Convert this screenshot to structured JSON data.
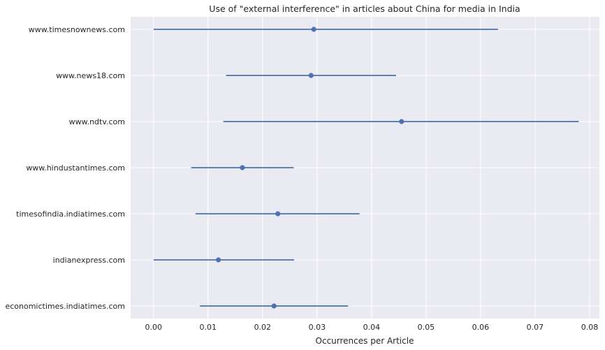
{
  "chart_data": {
    "type": "scatter",
    "title": "Use of \"external interference\" in articles about China for media in India",
    "xlabel": "Occurrences per Article",
    "ylabel": "",
    "xlim": [
      -0.0042,
      0.0818
    ],
    "x_ticks": [
      "0.00",
      "0.01",
      "0.02",
      "0.03",
      "0.04",
      "0.05",
      "0.06",
      "0.07",
      "0.08"
    ],
    "grid": true,
    "color": "#4c72b0",
    "background": "#eaeaf2",
    "categories": [
      "www.timesnownews.com",
      "www.news18.com",
      "www.ndtv.com",
      "www.hindustantimes.com",
      "timesofindia.indiatimes.com",
      "indianexpress.com",
      "economictimes.indiatimes.com"
    ],
    "values": [
      0.0294,
      0.0289,
      0.0455,
      0.0163,
      0.0228,
      0.0119,
      0.0221
    ],
    "ci_low": [
      0.0,
      0.0133,
      0.0128,
      0.0069,
      0.0077,
      0.0,
      0.0085
    ],
    "ci_high": [
      0.0632,
      0.0445,
      0.078,
      0.0257,
      0.0378,
      0.0258,
      0.0357
    ]
  }
}
